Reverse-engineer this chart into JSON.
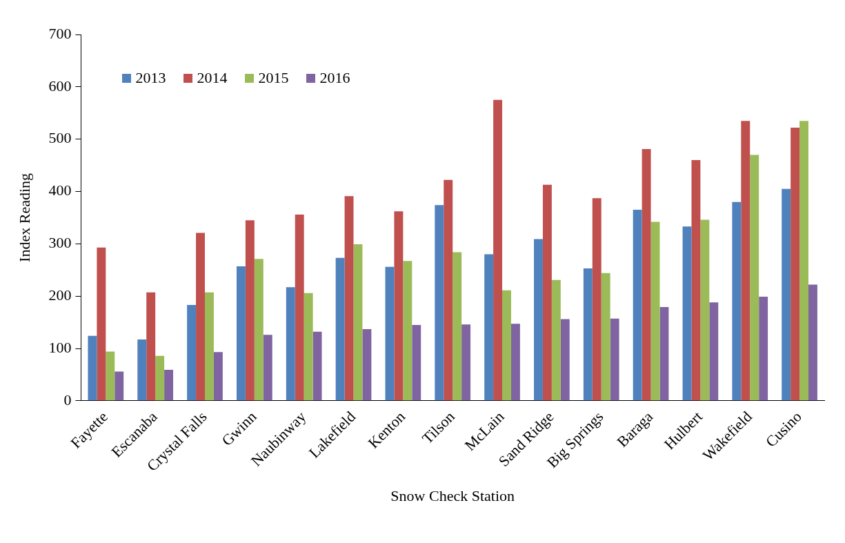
{
  "chart_data": {
    "type": "bar",
    "xlabel": "Snow Check Station",
    "ylabel": "Index Reading",
    "categories": [
      "Fayette",
      "Escanaba",
      "Crystal Falls",
      "Gwinn",
      "Naubinway",
      "Lakefield",
      "Kenton",
      "Tilson",
      "McLain",
      "Sand Ridge",
      "Big Springs",
      "Baraga",
      "Hulbert",
      "Wakefield",
      "Cusino"
    ],
    "series": [
      {
        "name": "2013",
        "color": "#4f81bd",
        "values": [
          124,
          117,
          183,
          257,
          217,
          273,
          256,
          374,
          280,
          309,
          253,
          365,
          333,
          380,
          405
        ]
      },
      {
        "name": "2014",
        "color": "#c0504d",
        "values": [
          293,
          207,
          321,
          345,
          356,
          391,
          362,
          422,
          575,
          413,
          387,
          481,
          460,
          535,
          522
        ]
      },
      {
        "name": "2015",
        "color": "#9bbb59",
        "values": [
          94,
          86,
          207,
          271,
          206,
          299,
          267,
          284,
          211,
          231,
          244,
          342,
          346,
          470,
          535
        ]
      },
      {
        "name": "2016",
        "color": "#8064a2",
        "values": [
          56,
          59,
          93,
          126,
          132,
          137,
          145,
          146,
          147,
          156,
          157,
          179,
          188,
          199,
          222
        ]
      }
    ],
    "ylim": [
      0,
      700
    ],
    "yticks": [
      0,
      100,
      200,
      300,
      400,
      500,
      600,
      700
    ],
    "grid": false,
    "legend": "top left"
  }
}
